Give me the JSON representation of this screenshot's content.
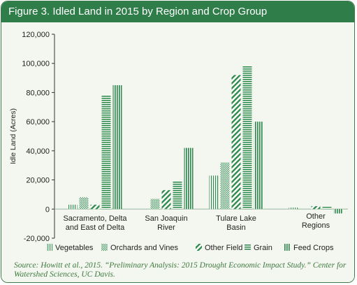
{
  "figure": {
    "title": "Figure 3. Idled Land in 2015 by Region and Crop Group",
    "source": "Source: Howitt et al., 2015. “Preliminary Analysis: 2015 Drought Economic Impact Study.” Center for Watershed Sciences, UC Davis."
  },
  "colors": {
    "frame": "#3f7b4a",
    "titlebar": "#2f7e4a",
    "bars": "#2e8b4a",
    "background": "#f4f7ef"
  },
  "chart_data": {
    "type": "bar",
    "title": "Figure 3. Idled Land in 2015 by Region and Crop Group",
    "ylabel": "Idle Land (Acres)",
    "xlabel": "",
    "ylim": [
      -20000,
      120000
    ],
    "yticks": [
      "-20,000",
      "0",
      "20,000",
      "40,000",
      "60,000",
      "80,000",
      "100,000",
      "120,000"
    ],
    "ytick_values": [
      -20000,
      0,
      20000,
      40000,
      60000,
      80000,
      100000,
      120000
    ],
    "categories": [
      [
        "Sacramento, Delta",
        "and East of Delta"
      ],
      [
        "San Joaquin",
        "River"
      ],
      [
        "Tulare Lake",
        "Basin"
      ],
      [
        "Other",
        "Regions"
      ]
    ],
    "series": [
      {
        "name": "Vegetables",
        "pattern": "vertical",
        "values": [
          3000,
          0,
          23000,
          1000
        ]
      },
      {
        "name": "Orchards and Vines",
        "pattern": "dots",
        "values": [
          8000,
          7000,
          32000,
          0
        ]
      },
      {
        "name": "Other Field",
        "pattern": "diagonal",
        "values": [
          3000,
          13000,
          92000,
          2000
        ]
      },
      {
        "name": "Grain",
        "pattern": "horizontal",
        "values": [
          78000,
          19000,
          98000,
          1500
        ]
      },
      {
        "name": "Feed Crops",
        "pattern": "vlines-bold",
        "values": [
          85000,
          42000,
          60000,
          -3000
        ]
      }
    ],
    "grid": false,
    "legend_position": "bottom"
  }
}
